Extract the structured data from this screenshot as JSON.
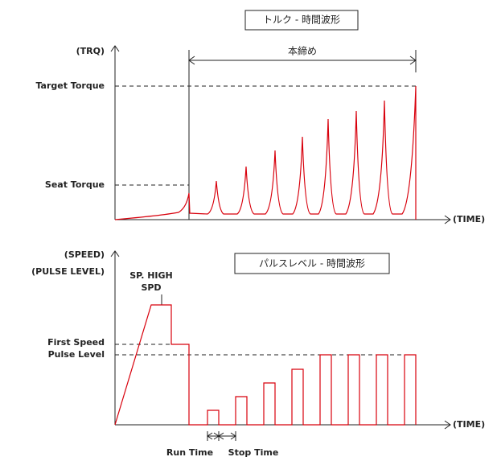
{
  "top": {
    "title": "トルク - 時間波形",
    "y_axis_label": "(TRQ)",
    "span_label": "本締め",
    "target_label": "Target Torque",
    "seat_label": "Seat Torque",
    "x_axis_label": "(TIME)"
  },
  "bottom": {
    "title": "パルスレベル - 時間波形",
    "y_axis_label_1": "(SPEED)",
    "y_axis_label_2": "(PULSE LEVEL)",
    "high_label_1": "SP. HIGH",
    "high_label_2": "SPD",
    "first_speed_label": "First Speed",
    "pulse_level_label": "Pulse Level",
    "x_axis_label": "(TIME)",
    "run_time_label": "Run Time",
    "stop_time_label": "Stop Time"
  }
}
